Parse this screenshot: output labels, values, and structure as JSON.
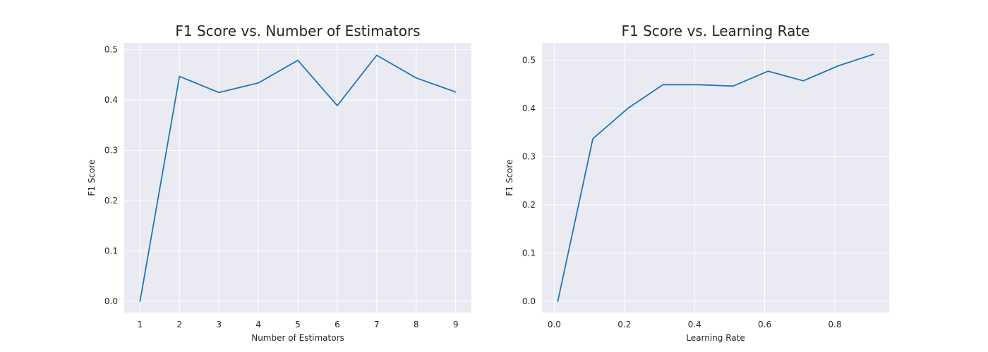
{
  "chart_data": [
    {
      "type": "line",
      "title": "F1 Score vs. Number of Estimators",
      "xlabel": "Number of Estimators",
      "ylabel": "F1 Score",
      "x": [
        1,
        2,
        3,
        4,
        5,
        6,
        7,
        8,
        9
      ],
      "y": [
        0.0,
        0.447,
        0.415,
        0.434,
        0.479,
        0.389,
        0.489,
        0.444,
        0.416
      ],
      "xticks": [
        "1",
        "2",
        "3",
        "4",
        "5",
        "6",
        "7",
        "8",
        "9"
      ],
      "yticks": [
        "0.0",
        "0.1",
        "0.2",
        "0.3",
        "0.4",
        "0.5"
      ],
      "xlim": [
        0.6,
        9.4
      ],
      "ylim": [
        -0.0225,
        0.5135
      ],
      "grid": true,
      "line_color": "#1f77b4"
    },
    {
      "type": "line",
      "title": "F1 Score vs. Learning Rate",
      "xlabel": "Learning Rate",
      "ylabel": "F1 Score",
      "x": [
        0.01,
        0.11,
        0.21,
        0.31,
        0.41,
        0.51,
        0.61,
        0.71,
        0.81,
        0.91
      ],
      "y": [
        0.0,
        0.337,
        0.4,
        0.449,
        0.449,
        0.446,
        0.477,
        0.457,
        0.488,
        0.512
      ],
      "xticks": [
        "0.0",
        "0.2",
        "0.4",
        "0.6",
        "0.8"
      ],
      "yticks": [
        "0.0",
        "0.1",
        "0.2",
        "0.3",
        "0.4",
        "0.5"
      ],
      "xlim": [
        -0.035,
        0.955
      ],
      "ylim": [
        -0.0235,
        0.5355
      ],
      "grid": true,
      "line_color": "#1f77b4"
    }
  ]
}
